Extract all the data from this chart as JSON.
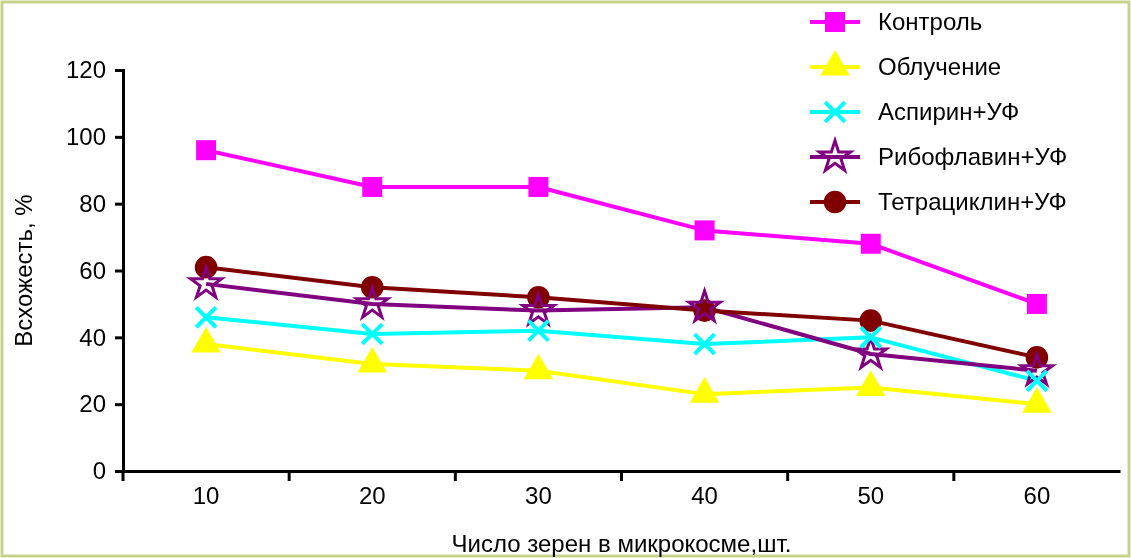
{
  "chart_data": {
    "type": "line",
    "xlabel": "Число зерен в микрокосме,шт.",
    "ylabel": "Всхожесть, %",
    "categories": [
      "10",
      "20",
      "30",
      "40",
      "50",
      "60"
    ],
    "ylim": [
      0,
      120
    ],
    "yticks": [
      0,
      20,
      40,
      60,
      80,
      100,
      120
    ],
    "grid": false,
    "legend": "top right",
    "series": [
      {
        "name": "Контроль",
        "color": "#ff00ff",
        "marker": "square",
        "values": [
          96,
          85,
          85,
          72,
          68,
          50
        ]
      },
      {
        "name": "Облучение",
        "color": "#ffff00",
        "marker": "triangle",
        "values": [
          38,
          32,
          30,
          23,
          25,
          20
        ]
      },
      {
        "name": "Аспирин+УФ",
        "color": "#00ffff",
        "marker": "cross",
        "values": [
          46,
          41,
          42,
          38,
          40,
          27
        ]
      },
      {
        "name": "Рибофлавин+УФ",
        "color": "#800080",
        "marker": "star",
        "values": [
          56,
          50,
          48,
          49,
          35,
          30
        ]
      },
      {
        "name": "Тетрациклин+УФ",
        "color": "#800000",
        "marker": "circle",
        "values": [
          61,
          55,
          52,
          48,
          45,
          34
        ]
      }
    ]
  }
}
